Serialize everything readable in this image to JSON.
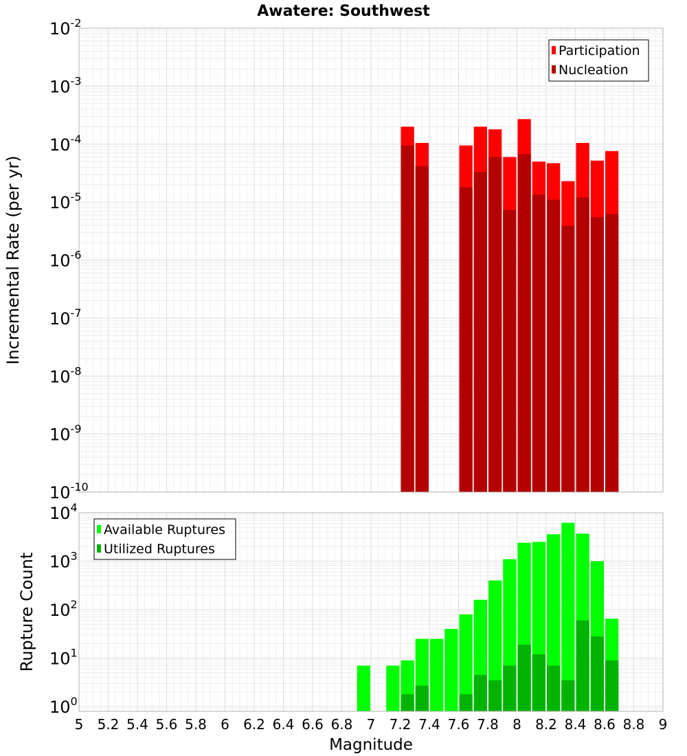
{
  "title": "Awatere: Southwest",
  "chart_data": [
    {
      "type": "bar",
      "scale": "log",
      "ylabel": "Incremental Rate (per yr)",
      "ylim": [
        1e-10,
        0.01
      ],
      "xlim": [
        5,
        9
      ],
      "y_tick_exponents": [
        "-10",
        "-9",
        "-8",
        "-7",
        "-6",
        "-5",
        "-4",
        "-3",
        "-2"
      ],
      "y_tick_base": "10",
      "legend_position": "top-right",
      "series": [
        {
          "name": "Participation",
          "color": "#ff0000",
          "points": [
            {
              "x": 7.25,
              "y": 0.0002
            },
            {
              "x": 7.35,
              "y": 0.000105
            },
            {
              "x": 7.65,
              "y": 9.5e-05
            },
            {
              "x": 7.75,
              "y": 0.0002
            },
            {
              "x": 7.85,
              "y": 0.00018
            },
            {
              "x": 7.95,
              "y": 6e-05
            },
            {
              "x": 8.05,
              "y": 0.00027
            },
            {
              "x": 8.15,
              "y": 5e-05
            },
            {
              "x": 8.25,
              "y": 4.7e-05
            },
            {
              "x": 8.35,
              "y": 2.3e-05
            },
            {
              "x": 8.45,
              "y": 0.000105
            },
            {
              "x": 8.55,
              "y": 5.2e-05
            },
            {
              "x": 8.65,
              "y": 7.6e-05
            }
          ]
        },
        {
          "name": "Nucleation",
          "color": "#b30000",
          "points": [
            {
              "x": 7.25,
              "y": 9.5e-05
            },
            {
              "x": 7.35,
              "y": 4.2e-05
            },
            {
              "x": 7.65,
              "y": 1.8e-05
            },
            {
              "x": 7.75,
              "y": 3.3e-05
            },
            {
              "x": 7.85,
              "y": 6e-05
            },
            {
              "x": 7.95,
              "y": 7.3e-06
            },
            {
              "x": 8.05,
              "y": 6.7e-05
            },
            {
              "x": 8.15,
              "y": 1.35e-05
            },
            {
              "x": 8.25,
              "y": 1.1e-05
            },
            {
              "x": 8.35,
              "y": 3.9e-06
            },
            {
              "x": 8.45,
              "y": 1.2e-05
            },
            {
              "x": 8.55,
              "y": 5.5e-06
            },
            {
              "x": 8.65,
              "y": 6.3e-06
            }
          ]
        }
      ]
    },
    {
      "type": "bar",
      "scale": "log",
      "ylabel": "Rupture Count",
      "xlabel": "Magnitude",
      "ylim": [
        0.8,
        10000
      ],
      "xlim": [
        5,
        9
      ],
      "y_tick_exponents": [
        "0",
        "1",
        "2",
        "3",
        "4"
      ],
      "y_tick_base": "10",
      "x_ticks": [
        "5",
        "5.2",
        "5.4",
        "5.6",
        "5.8",
        "6",
        "6.2",
        "6.4",
        "6.6",
        "6.8",
        "7",
        "7.2",
        "7.4",
        "7.6",
        "7.8",
        "8",
        "8.2",
        "8.4",
        "8.6",
        "8.8",
        "9"
      ],
      "legend_position": "top-left",
      "series": [
        {
          "name": "Available Ruptures",
          "color": "#00ff00",
          "points": [
            {
              "x": 6.95,
              "y": 7
            },
            {
              "x": 7.15,
              "y": 7
            },
            {
              "x": 7.25,
              "y": 9
            },
            {
              "x": 7.35,
              "y": 25
            },
            {
              "x": 7.45,
              "y": 25
            },
            {
              "x": 7.55,
              "y": 40
            },
            {
              "x": 7.65,
              "y": 80
            },
            {
              "x": 7.75,
              "y": 160
            },
            {
              "x": 7.85,
              "y": 400
            },
            {
              "x": 7.95,
              "y": 1100
            },
            {
              "x": 8.05,
              "y": 2400
            },
            {
              "x": 8.15,
              "y": 2500
            },
            {
              "x": 8.25,
              "y": 3600
            },
            {
              "x": 8.35,
              "y": 6200
            },
            {
              "x": 8.45,
              "y": 3700
            },
            {
              "x": 8.55,
              "y": 1000
            },
            {
              "x": 8.65,
              "y": 65
            }
          ]
        },
        {
          "name": "Utilized Ruptures",
          "color": "#00b300",
          "points": [
            {
              "x": 7.25,
              "y": 1.8
            },
            {
              "x": 7.35,
              "y": 2.7
            },
            {
              "x": 7.65,
              "y": 1.8
            },
            {
              "x": 7.75,
              "y": 4.5
            },
            {
              "x": 7.85,
              "y": 3.5
            },
            {
              "x": 7.95,
              "y": 7
            },
            {
              "x": 8.05,
              "y": 19
            },
            {
              "x": 8.15,
              "y": 12
            },
            {
              "x": 8.25,
              "y": 7
            },
            {
              "x": 8.35,
              "y": 3.5
            },
            {
              "x": 8.45,
              "y": 60
            },
            {
              "x": 8.55,
              "y": 28
            },
            {
              "x": 8.65,
              "y": 9
            }
          ]
        }
      ]
    }
  ]
}
